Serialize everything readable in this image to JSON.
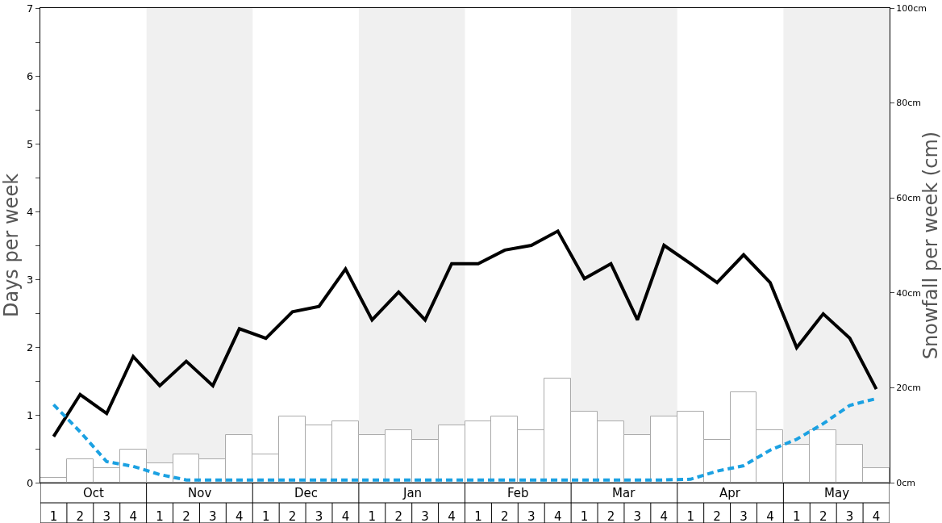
{
  "chart_data": {
    "type": "bar",
    "ylabel": "Days per week",
    "y2label": "Snowfall per week (cm)",
    "categories": [
      "1",
      "2",
      "3",
      "4",
      "1",
      "2",
      "3",
      "4",
      "1",
      "2",
      "3",
      "4",
      "1",
      "2",
      "3",
      "4",
      "1",
      "2",
      "3",
      "4",
      "1",
      "2",
      "3",
      "4",
      "1",
      "2",
      "3",
      "4",
      "1",
      "2",
      "3",
      "4"
    ],
    "annotations": [
      "Oct",
      "Nov",
      "Dec",
      "Jan",
      "Feb",
      "Mar",
      "Apr",
      "May"
    ],
    "series": [
      {
        "axis": "y2",
        "color": "#ffffff",
        "values": [
          1,
          5,
          3,
          7,
          4,
          6,
          5,
          10,
          6,
          14,
          12,
          13,
          10,
          11,
          9,
          12,
          13,
          14,
          11,
          22,
          15,
          13,
          10,
          14,
          15,
          9,
          19,
          11,
          8,
          11,
          8,
          3
        ]
      },
      {
        "type": "line",
        "color": "#000000",
        "line_style": "solid",
        "values": [
          0.68,
          1.3,
          1.02,
          1.86,
          1.43,
          1.79,
          1.43,
          2.27,
          2.13,
          2.52,
          2.6,
          3.15,
          2.4,
          2.81,
          2.4,
          3.23,
          3.23,
          3.43,
          3.5,
          3.71,
          3.01,
          3.23,
          2.4,
          3.5,
          3.23,
          2.95,
          3.36,
          2.95,
          1.99,
          2.49,
          2.13,
          1.38
        ]
      },
      {
        "type": "line",
        "color": "#1ba1e2",
        "line_style": "dashed",
        "values": [
          1.15,
          0.75,
          0.31,
          0.24,
          0.12,
          0.04,
          0.04,
          0.04,
          0.04,
          0.04,
          0.04,
          0.04,
          0.04,
          0.04,
          0.04,
          0.04,
          0.04,
          0.04,
          0.04,
          0.04,
          0.04,
          0.04,
          0.04,
          0.04,
          0.05,
          0.17,
          0.25,
          0.48,
          0.64,
          0.87,
          1.14,
          1.24
        ]
      }
    ],
    "ylim": [
      0,
      7
    ],
    "yticks": [
      0,
      {
        "value": 0.5,
        "label": null
      },
      1,
      {
        "value": 1.5,
        "label": null
      },
      2,
      {
        "value": 2.5,
        "label": null
      },
      3,
      {
        "value": 3.5,
        "label": null
      },
      4,
      {
        "value": 4.5,
        "label": null
      },
      5,
      {
        "value": 5.5,
        "label": null
      },
      6,
      {
        "value": 6.5,
        "label": null
      },
      7
    ],
    "y2lim": [
      0,
      100
    ],
    "y2ticks": [
      {
        "value": 0,
        "label": "0cm"
      },
      {
        "value": 20,
        "label": "20cm"
      },
      {
        "value": 40,
        "label": "40cm"
      },
      {
        "value": 60,
        "label": "60cm"
      },
      {
        "value": 80,
        "label": "80cm"
      },
      {
        "value": 100,
        "label": "100cm"
      }
    ],
    "grid": false
  }
}
